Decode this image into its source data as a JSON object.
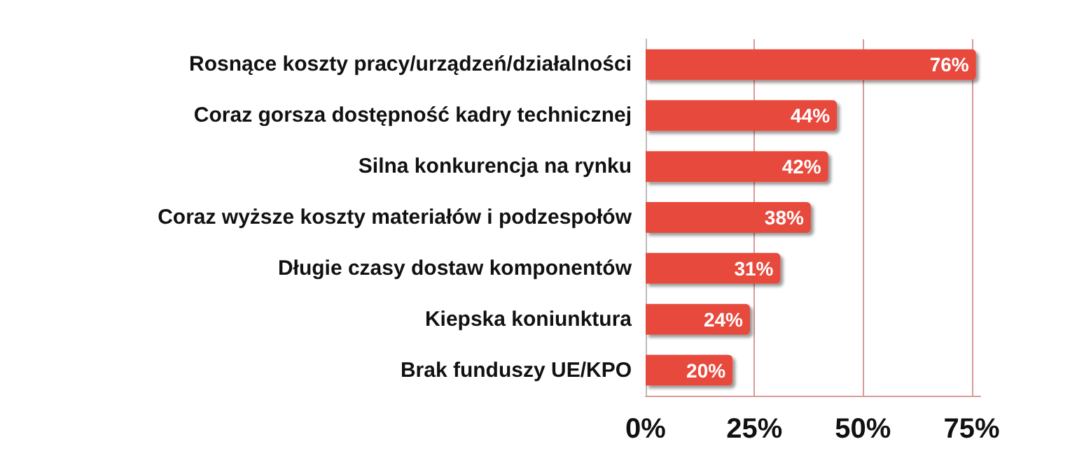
{
  "chart_data": {
    "type": "bar",
    "orientation": "horizontal",
    "categories": [
      "Rosnące koszty pracy/urządzeń/działalności",
      "Coraz gorsza dostępność kadry technicznej",
      "Silna konkurencja na rynku",
      "Coraz wyższe koszty materiałów i podzespołów",
      "Długie czasy dostaw komponentów",
      "Kiepska koniunktura",
      "Brak funduszy UE/KPO"
    ],
    "values": [
      76,
      44,
      42,
      38,
      31,
      24,
      20
    ],
    "value_labels": [
      "76%",
      "44%",
      "42%",
      "38%",
      "31%",
      "24%",
      "20%"
    ],
    "color": "#e84a3c",
    "xlim": [
      0,
      77
    ],
    "xticks": [
      {
        "value": 0,
        "label": "0%"
      },
      {
        "value": 25,
        "label": "25%"
      },
      {
        "value": 50,
        "label": "50%"
      },
      {
        "value": 75,
        "label": "75%"
      }
    ],
    "grid": "x"
  }
}
